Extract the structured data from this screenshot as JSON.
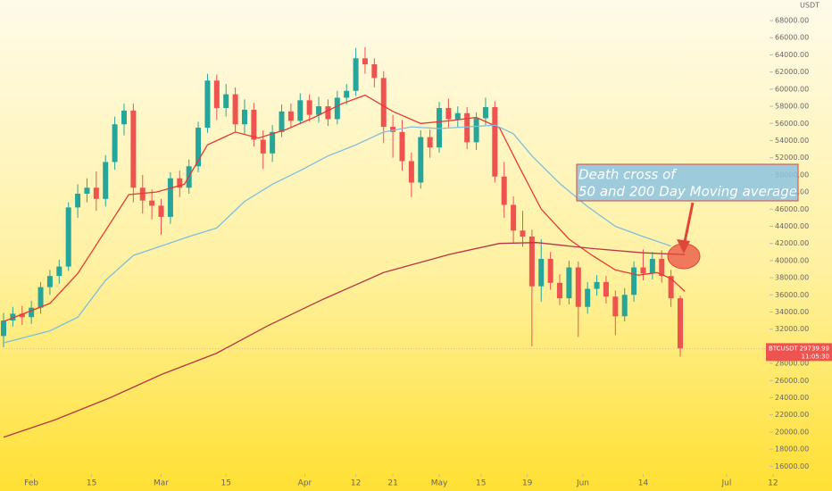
{
  "chart_data": {
    "type": "candlestick",
    "currency": "USDT",
    "symbol": "BTCUSDT",
    "countdown": "11:05:30",
    "up_color": "#26a69a",
    "down_color": "#ef5350",
    "x": [
      -6,
      -4,
      -2,
      0,
      2,
      4,
      6,
      8,
      10,
      12,
      14,
      16,
      18,
      20,
      22,
      24,
      26,
      28,
      30,
      32,
      34,
      36,
      38,
      40,
      42,
      44,
      46,
      48,
      50,
      52,
      54,
      56,
      58,
      60,
      62,
      64,
      66,
      68,
      70,
      72,
      74,
      76,
      78,
      80,
      82,
      84,
      86,
      88,
      90,
      92,
      94,
      96,
      98,
      100,
      102,
      104,
      106,
      108,
      110,
      112,
      114,
      116,
      118,
      120,
      122,
      124,
      126,
      128,
      130,
      132,
      134,
      136,
      138,
      140
    ],
    "open": [
      31200,
      33000,
      33800,
      33400,
      34500,
      36900,
      38200,
      39300,
      46200,
      47800,
      48500,
      47200,
      51500,
      55900,
      57500,
      48500,
      47000,
      46400,
      45100,
      49600,
      48500,
      51000,
      55500,
      61000,
      57800,
      59400,
      55900,
      57600,
      54100,
      52500,
      55000,
      57400,
      56300,
      58700,
      57000,
      58000,
      56500,
      59000,
      59800,
      63600,
      62900,
      61300,
      55600,
      55000,
      51600,
      49100,
      54400,
      53200,
      57800,
      56500,
      57200,
      53800,
      56600,
      57900,
      49800,
      46500,
      43500,
      42800,
      37000,
      40200,
      37400,
      35600,
      39200,
      34600,
      36700,
      37500,
      35800,
      33500,
      36000,
      39200,
      38500,
      40200,
      38200,
      35600
    ],
    "high": [
      33900,
      34600,
      34700,
      35300,
      37500,
      38900,
      40100,
      46800,
      48900,
      49600,
      50400,
      52300,
      56800,
      58300,
      58300,
      50000,
      48300,
      47200,
      50300,
      50500,
      51800,
      56200,
      61800,
      61700,
      60600,
      60200,
      58800,
      58400,
      55200,
      55800,
      58200,
      58300,
      59500,
      59400,
      59100,
      58800,
      59800,
      60600,
      64800,
      64900,
      63600,
      62100,
      57000,
      56400,
      52600,
      55200,
      55300,
      58500,
      58900,
      58000,
      57900,
      57300,
      59000,
      58600,
      51500,
      47500,
      45800,
      43600,
      42500,
      41000,
      38400,
      40000,
      39900,
      37500,
      38300,
      38200,
      36500,
      36800,
      39900,
      41300,
      41000,
      41200,
      38900,
      35900
    ],
    "low": [
      29900,
      32300,
      32500,
      32600,
      33800,
      36000,
      37300,
      38800,
      45000,
      46800,
      45800,
      46300,
      50600,
      54600,
      46800,
      45500,
      44800,
      43000,
      44300,
      47400,
      47800,
      50300,
      54900,
      56400,
      56800,
      55000,
      54700,
      53300,
      50700,
      51500,
      54400,
      55600,
      55900,
      56200,
      56100,
      55700,
      55900,
      58200,
      59200,
      61800,
      60200,
      53700,
      52000,
      50500,
      47400,
      48400,
      52000,
      52600,
      55400,
      55500,
      53000,
      52900,
      55800,
      49100,
      45000,
      42000,
      41600,
      30000,
      35200,
      36600,
      34800,
      34900,
      31100,
      33800,
      35900,
      35000,
      31300,
      32900,
      35200,
      37700,
      37800,
      37400,
      34600,
      28800
    ],
    "close": [
      33000,
      33800,
      33400,
      34500,
      36900,
      38200,
      39300,
      46200,
      47800,
      48500,
      47200,
      51500,
      55900,
      57500,
      48500,
      47000,
      46400,
      45100,
      49600,
      48500,
      51000,
      55500,
      61000,
      57800,
      59400,
      55900,
      57600,
      54100,
      52500,
      55000,
      57400,
      56300,
      58700,
      57000,
      58000,
      56500,
      59000,
      59800,
      63600,
      62900,
      61300,
      55600,
      55000,
      51600,
      49100,
      54400,
      53200,
      57800,
      56500,
      57200,
      53800,
      56600,
      57900,
      49800,
      46500,
      43500,
      42800,
      37000,
      40200,
      37400,
      35600,
      39200,
      34600,
      36700,
      37500,
      35800,
      33500,
      36000,
      39200,
      38500,
      40200,
      38200,
      35600,
      29739.99
    ],
    "lines": [
      {
        "color": "#e53935",
        "x": [
          -6,
          4,
          10,
          16,
          21,
          27,
          33,
          38,
          44,
          49,
          55,
          61,
          67,
          72,
          78,
          84,
          90,
          96,
          101,
          105,
          110,
          116,
          121,
          126,
          131,
          135,
          138,
          141
        ],
        "values": [
          32900,
          35000,
          38500,
          43500,
          47700,
          48000,
          48900,
          53500,
          55000,
          54300,
          55300,
          56700,
          58300,
          59300,
          57400,
          56000,
          56300,
          56700,
          55500,
          51200,
          46000,
          42500,
          40600,
          38900,
          38300,
          38600,
          37900,
          36400
        ]
      },
      {
        "color": "#7cbfe0",
        "x": [
          -6,
          4,
          10,
          16,
          22,
          28,
          34,
          40,
          46,
          52,
          58,
          64,
          70,
          76,
          82,
          88,
          94,
          100,
          104,
          108,
          114,
          120,
          126,
          132,
          138
        ],
        "values": [
          30400,
          31800,
          33400,
          37700,
          40600,
          41700,
          42800,
          43800,
          46900,
          48900,
          50500,
          52200,
          53500,
          55000,
          55600,
          55400,
          55600,
          55800,
          54800,
          52200,
          49000,
          46300,
          44000,
          42800,
          41700
        ]
      },
      {
        "color": "#b5354a",
        "x": [
          -6,
          5,
          17,
          28,
          40,
          51,
          63,
          76,
          90,
          101,
          109,
          121,
          132,
          141
        ],
        "values": [
          19400,
          21400,
          24000,
          26700,
          29200,
          32400,
          35500,
          38600,
          40700,
          42000,
          42100,
          41400,
          40900,
          40700
        ]
      }
    ],
    "xlim": [
      -6,
      166
    ],
    "ylim": [
      15200,
      70400
    ],
    "xticks": [
      {
        "value": 0,
        "label": "Feb"
      },
      {
        "value": 13,
        "label": "15"
      },
      {
        "value": 28,
        "label": "Mar"
      },
      {
        "value": 42,
        "label": "15"
      },
      {
        "value": 59,
        "label": "Apr"
      },
      {
        "value": 70,
        "label": "12"
      },
      {
        "value": 78,
        "label": "21"
      },
      {
        "value": 88,
        "label": "May"
      },
      {
        "value": 97,
        "label": "15"
      },
      {
        "value": 107,
        "label": "19"
      },
      {
        "value": 119,
        "label": "Jun"
      },
      {
        "value": 132,
        "label": "14"
      },
      {
        "value": 150,
        "label": "Jul"
      },
      {
        "value": 160,
        "label": "12"
      }
    ],
    "yticks": [
      {
        "value": 16000,
        "label": "16000.00"
      },
      {
        "value": 18000,
        "label": "18000.00"
      },
      {
        "value": 20000,
        "label": "20000.00"
      },
      {
        "value": 22000,
        "label": "22000.00"
      },
      {
        "value": 24000,
        "label": "24000.00"
      },
      {
        "value": 26000,
        "label": "26000.00"
      },
      {
        "value": 28000,
        "label": "28000.00"
      },
      {
        "value": 32000,
        "label": "32000.00"
      },
      {
        "value": 34000,
        "label": "34000.00"
      },
      {
        "value": 36000,
        "label": "36000.00"
      },
      {
        "value": 38000,
        "label": "38000.00"
      },
      {
        "value": 40000,
        "label": "40000.00"
      },
      {
        "value": 42000,
        "label": "42000.00"
      },
      {
        "value": 44000,
        "label": "44000.00"
      },
      {
        "value": 46000,
        "label": "46000.00"
      },
      {
        "value": 48000,
        "label": "48000.00"
      },
      {
        "value": 50000,
        "label": "50000.00"
      },
      {
        "value": 52000,
        "label": "52000.00"
      },
      {
        "value": 54000,
        "label": "54000.00"
      },
      {
        "value": 56000,
        "label": "56000.00"
      },
      {
        "value": 58000,
        "label": "58000.00"
      },
      {
        "value": 60000,
        "label": "60000.00"
      },
      {
        "value": 62000,
        "label": "62000.00"
      },
      {
        "value": 64000,
        "label": "64000.00"
      },
      {
        "value": 66000,
        "label": "66000.00"
      },
      {
        "value": 68000,
        "label": "68000.00"
      }
    ],
    "annotation": [
      "Death cross of",
      "50 and 200 Day Moving average :"
    ]
  }
}
